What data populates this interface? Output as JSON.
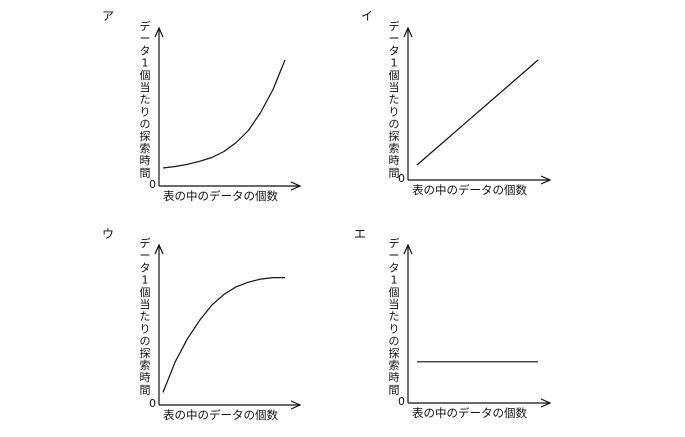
{
  "chart_data": [
    {
      "type": "line",
      "panel": "ア",
      "xlabel": "表の中のデータの個数",
      "ylabel": "データ1個当たりの探索時間",
      "origin": "0",
      "shape": "exponential-increase",
      "x": [
        0,
        0.1,
        0.2,
        0.3,
        0.4,
        0.5,
        0.6,
        0.7,
        0.8,
        0.9,
        1.0
      ],
      "series": [
        {
          "values": [
            0.08,
            0.09,
            0.105,
            0.125,
            0.15,
            0.19,
            0.25,
            0.33,
            0.45,
            0.6,
            0.8
          ]
        }
      ]
    },
    {
      "type": "line",
      "panel": "イ",
      "xlabel": "表の中のデータの個数",
      "ylabel": "データ1個当たりの探索時間",
      "origin": "0",
      "shape": "linear-increase",
      "x": [
        0,
        1.0
      ],
      "series": [
        {
          "values": [
            0.1,
            0.8
          ]
        }
      ]
    },
    {
      "type": "line",
      "panel": "ウ",
      "xlabel": "表の中のデータの個数",
      "ylabel": "データ1個当たりの探索時間",
      "origin": "0",
      "shape": "logarithmic-saturation",
      "x": [
        0,
        0.1,
        0.2,
        0.3,
        0.4,
        0.5,
        0.6,
        0.7,
        0.8,
        0.9,
        1.0
      ],
      "series": [
        {
          "values": [
            0.05,
            0.25,
            0.4,
            0.52,
            0.62,
            0.69,
            0.74,
            0.77,
            0.79,
            0.8,
            0.8
          ]
        }
      ]
    },
    {
      "type": "line",
      "panel": "エ",
      "xlabel": "表の中のデータの個数",
      "ylabel": "データ1個当たりの探索時間",
      "origin": "0",
      "shape": "constant",
      "x": [
        0,
        1.0
      ],
      "series": [
        {
          "values": [
            0.25,
            0.25
          ]
        }
      ]
    }
  ]
}
